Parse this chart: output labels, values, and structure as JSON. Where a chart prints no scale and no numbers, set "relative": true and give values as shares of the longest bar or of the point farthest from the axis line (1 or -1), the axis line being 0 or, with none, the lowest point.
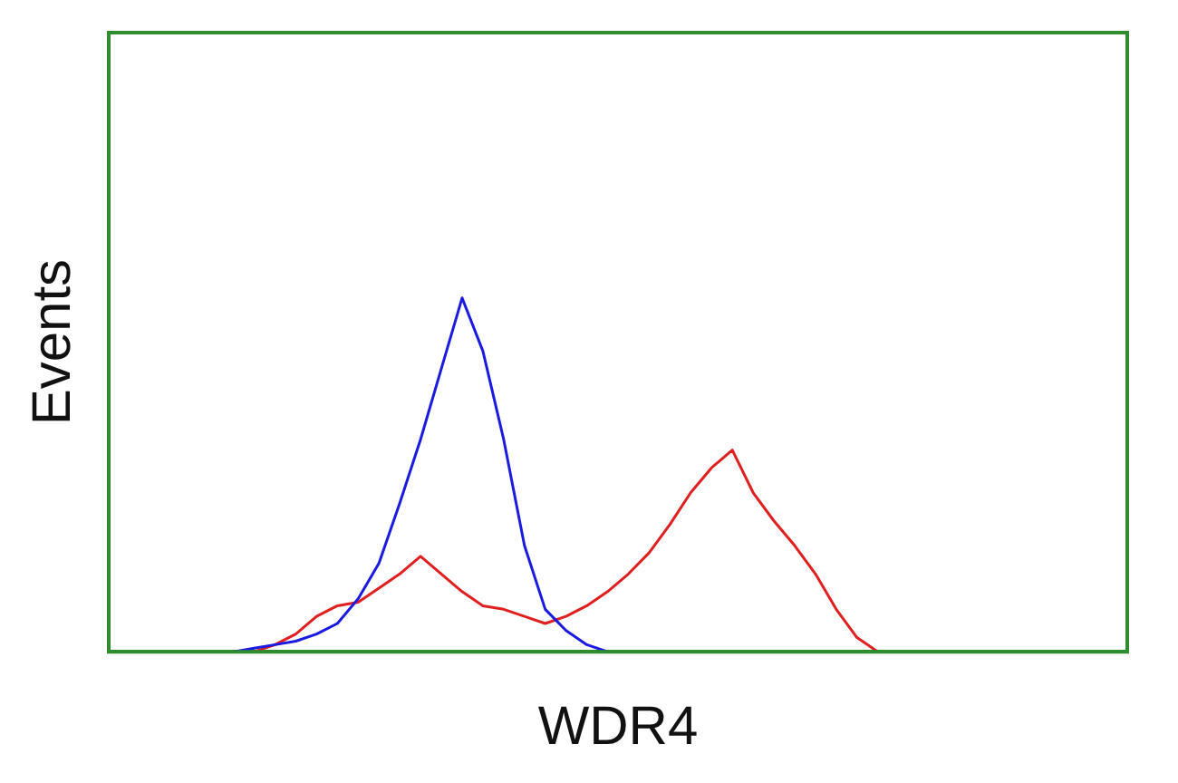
{
  "chart_data": {
    "type": "line",
    "relative": true,
    "xlabel": "WDR4",
    "ylabel": "Events",
    "grid": false,
    "legend": false,
    "marker": "none",
    "line_style": "solid",
    "categories": [
      null,
      null,
      null,
      null,
      null,
      null,
      null,
      null,
      null,
      null,
      null,
      null,
      null,
      null,
      null,
      null,
      null,
      null,
      null,
      null,
      null,
      null,
      null,
      null,
      null,
      null,
      null,
      null,
      null,
      null,
      null,
      null,
      null,
      null,
      null,
      null,
      null,
      null,
      null,
      null,
      null,
      null,
      null,
      null,
      null,
      null,
      null,
      null,
      null,
      null
    ],
    "series": [
      {
        "color": "#1a1ae0",
        "values": [
          null,
          null,
          null,
          null,
          null,
          null,
          0,
          0.01,
          0.02,
          0.03,
          0.05,
          0.08,
          0.15,
          0.25,
          0.42,
          0.6,
          0.8,
          1,
          0.85,
          0.6,
          0.3,
          0.12,
          0.06,
          0.02,
          0,
          null,
          null,
          null,
          null,
          null,
          null,
          null,
          null,
          null,
          null,
          null,
          null,
          null,
          null,
          null,
          null,
          null,
          null,
          null,
          null,
          null,
          null,
          null,
          null,
          null
        ]
      },
      {
        "color": "#e02020",
        "values": [
          null,
          null,
          null,
          null,
          null,
          null,
          null,
          0,
          0.02,
          0.05,
          0.1,
          0.13,
          0.14,
          0.18,
          0.22,
          0.27,
          0.22,
          0.17,
          0.13,
          0.12,
          0.1,
          0.08,
          0.1,
          0.13,
          0.17,
          0.22,
          0.28,
          0.36,
          0.45,
          0.52,
          0.57,
          0.45,
          0.37,
          0.3,
          0.22,
          0.12,
          0.04,
          0,
          null,
          null,
          null,
          null,
          null,
          null,
          null,
          null,
          null,
          null,
          null,
          null
        ]
      }
    ]
  }
}
